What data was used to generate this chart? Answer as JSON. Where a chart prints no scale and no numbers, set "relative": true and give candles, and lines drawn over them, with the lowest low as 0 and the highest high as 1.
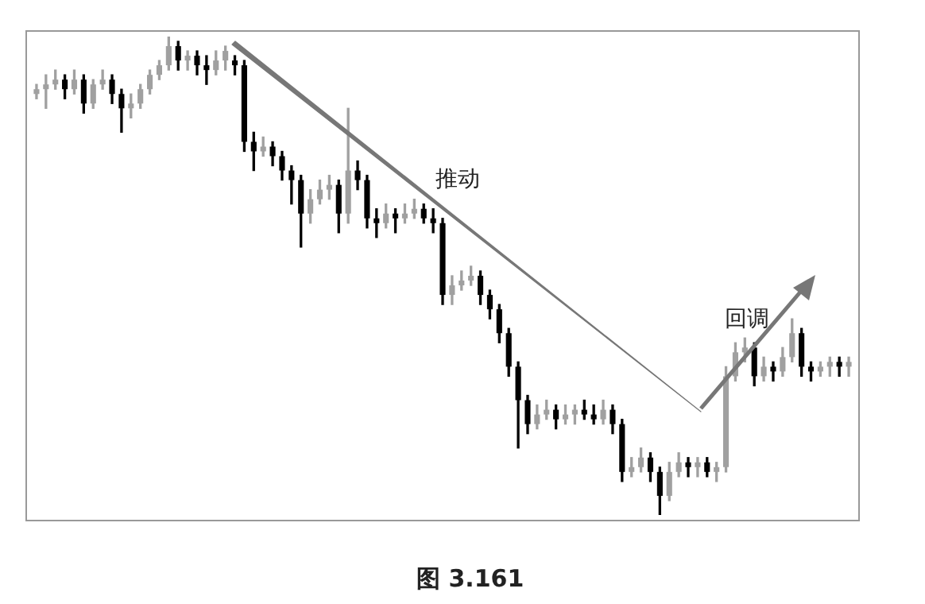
{
  "chart_data": {
    "type": "candlestick",
    "relative": true,
    "categories": [
      null,
      null,
      null,
      null,
      null,
      null,
      null,
      null,
      null,
      null,
      null,
      null,
      null,
      null,
      null,
      null,
      null,
      null,
      null,
      null,
      null,
      null,
      null,
      null,
      null,
      null,
      null,
      null,
      null,
      null,
      null,
      null,
      null,
      null,
      null,
      null,
      null,
      null,
      null,
      null,
      null,
      null,
      null,
      null,
      null,
      null,
      null,
      null,
      null,
      null,
      null,
      null,
      null,
      null,
      null,
      null,
      null,
      null,
      null,
      null,
      null,
      null,
      null,
      null,
      null,
      null,
      null,
      null,
      null,
      null,
      null,
      null,
      null,
      null,
      null,
      null,
      null,
      null,
      null,
      null,
      null,
      null,
      null,
      null,
      null,
      null,
      null
    ],
    "ohlc": [
      [
        0.88,
        0.9,
        0.87,
        0.89
      ],
      [
        0.89,
        0.92,
        0.85,
        0.9
      ],
      [
        0.9,
        0.93,
        0.89,
        0.91
      ],
      [
        0.91,
        0.92,
        0.87,
        0.89
      ],
      [
        0.89,
        0.93,
        0.88,
        0.91
      ],
      [
        0.91,
        0.92,
        0.84,
        0.86
      ],
      [
        0.86,
        0.91,
        0.85,
        0.9
      ],
      [
        0.9,
        0.93,
        0.89,
        0.91
      ],
      [
        0.91,
        0.92,
        0.86,
        0.88
      ],
      [
        0.88,
        0.89,
        0.8,
        0.85
      ],
      [
        0.85,
        0.88,
        0.83,
        0.86
      ],
      [
        0.86,
        0.9,
        0.85,
        0.89
      ],
      [
        0.89,
        0.93,
        0.88,
        0.92
      ],
      [
        0.92,
        0.95,
        0.91,
        0.94
      ],
      [
        0.94,
        1.0,
        0.93,
        0.98
      ],
      [
        0.98,
        0.99,
        0.93,
        0.95
      ],
      [
        0.95,
        0.97,
        0.93,
        0.96
      ],
      [
        0.96,
        0.97,
        0.92,
        0.94
      ],
      [
        0.94,
        0.96,
        0.9,
        0.93
      ],
      [
        0.93,
        0.97,
        0.92,
        0.95
      ],
      [
        0.95,
        0.98,
        0.93,
        0.97
      ],
      [
        0.95,
        0.96,
        0.92,
        0.94
      ],
      [
        0.94,
        0.95,
        0.76,
        0.78
      ],
      [
        0.78,
        0.8,
        0.72,
        0.76
      ],
      [
        0.76,
        0.79,
        0.75,
        0.77
      ],
      [
        0.77,
        0.78,
        0.73,
        0.75
      ],
      [
        0.75,
        0.76,
        0.7,
        0.72
      ],
      [
        0.72,
        0.73,
        0.65,
        0.7
      ],
      [
        0.7,
        0.71,
        0.56,
        0.63
      ],
      [
        0.63,
        0.68,
        0.61,
        0.66
      ],
      [
        0.66,
        0.7,
        0.65,
        0.68
      ],
      [
        0.68,
        0.71,
        0.66,
        0.69
      ],
      [
        0.69,
        0.7,
        0.59,
        0.63
      ],
      [
        0.63,
        0.85,
        0.61,
        0.72
      ],
      [
        0.72,
        0.74,
        0.68,
        0.7
      ],
      [
        0.7,
        0.71,
        0.6,
        0.62
      ],
      [
        0.62,
        0.64,
        0.58,
        0.61
      ],
      [
        0.61,
        0.65,
        0.6,
        0.63
      ],
      [
        0.63,
        0.64,
        0.59,
        0.62
      ],
      [
        0.62,
        0.65,
        0.61,
        0.63
      ],
      [
        0.63,
        0.66,
        0.62,
        0.64
      ],
      [
        0.64,
        0.65,
        0.61,
        0.62
      ],
      [
        0.62,
        0.64,
        0.59,
        0.61
      ],
      [
        0.61,
        0.62,
        0.44,
        0.46
      ],
      [
        0.46,
        0.5,
        0.44,
        0.48
      ],
      [
        0.48,
        0.51,
        0.47,
        0.49
      ],
      [
        0.49,
        0.52,
        0.48,
        0.5
      ],
      [
        0.5,
        0.51,
        0.44,
        0.46
      ],
      [
        0.46,
        0.47,
        0.41,
        0.43
      ],
      [
        0.43,
        0.44,
        0.36,
        0.38
      ],
      [
        0.38,
        0.39,
        0.29,
        0.31
      ],
      [
        0.31,
        0.32,
        0.14,
        0.24
      ],
      [
        0.24,
        0.25,
        0.17,
        0.19
      ],
      [
        0.19,
        0.23,
        0.18,
        0.21
      ],
      [
        0.21,
        0.24,
        0.2,
        0.22
      ],
      [
        0.22,
        0.23,
        0.18,
        0.2
      ],
      [
        0.2,
        0.23,
        0.19,
        0.21
      ],
      [
        0.21,
        0.23,
        0.19,
        0.22
      ],
      [
        0.22,
        0.24,
        0.2,
        0.21
      ],
      [
        0.21,
        0.23,
        0.19,
        0.2
      ],
      [
        0.2,
        0.24,
        0.19,
        0.22
      ],
      [
        0.22,
        0.23,
        0.17,
        0.19
      ],
      [
        0.19,
        0.2,
        0.07,
        0.09
      ],
      [
        0.09,
        0.12,
        0.08,
        0.1
      ],
      [
        0.1,
        0.14,
        0.09,
        0.12
      ],
      [
        0.12,
        0.13,
        0.07,
        0.09
      ],
      [
        0.09,
        0.1,
        0.0,
        0.04
      ],
      [
        0.04,
        0.11,
        0.03,
        0.09
      ],
      [
        0.09,
        0.13,
        0.08,
        0.11
      ],
      [
        0.11,
        0.12,
        0.08,
        0.1
      ],
      [
        0.1,
        0.12,
        0.08,
        0.11
      ],
      [
        0.11,
        0.12,
        0.08,
        0.09
      ],
      [
        0.09,
        0.11,
        0.07,
        0.1
      ],
      [
        0.1,
        0.31,
        0.09,
        0.29
      ],
      [
        0.29,
        0.36,
        0.28,
        0.34
      ],
      [
        0.34,
        0.37,
        0.32,
        0.35
      ],
      [
        0.35,
        0.36,
        0.27,
        0.29
      ],
      [
        0.29,
        0.33,
        0.28,
        0.31
      ],
      [
        0.31,
        0.32,
        0.28,
        0.3
      ],
      [
        0.3,
        0.35,
        0.29,
        0.33
      ],
      [
        0.33,
        0.41,
        0.32,
        0.38
      ],
      [
        0.38,
        0.39,
        0.29,
        0.31
      ],
      [
        0.31,
        0.32,
        0.28,
        0.3
      ],
      [
        0.3,
        0.32,
        0.29,
        0.31
      ],
      [
        0.31,
        0.33,
        0.29,
        0.32
      ],
      [
        0.32,
        0.33,
        0.29,
        0.31
      ],
      [
        0.31,
        0.33,
        0.29,
        0.32
      ]
    ],
    "colors": [
      "#a0a0a0",
      "#a0a0a0",
      "#a0a0a0",
      "#000000",
      "#a0a0a0",
      "#000000",
      "#a0a0a0",
      "#a0a0a0",
      "#000000",
      "#000000",
      "#a0a0a0",
      "#a0a0a0",
      "#a0a0a0",
      "#a0a0a0",
      "#a0a0a0",
      "#000000",
      "#a0a0a0",
      "#000000",
      "#000000",
      "#a0a0a0",
      "#a0a0a0",
      "#000000",
      "#000000",
      "#000000",
      "#a0a0a0",
      "#000000",
      "#000000",
      "#000000",
      "#000000",
      "#a0a0a0",
      "#a0a0a0",
      "#a0a0a0",
      "#000000",
      "#a0a0a0",
      "#000000",
      "#000000",
      "#000000",
      "#a0a0a0",
      "#000000",
      "#a0a0a0",
      "#a0a0a0",
      "#000000",
      "#000000",
      "#000000",
      "#a0a0a0",
      "#a0a0a0",
      "#a0a0a0",
      "#000000",
      "#000000",
      "#000000",
      "#000000",
      "#000000",
      "#000000",
      "#a0a0a0",
      "#a0a0a0",
      "#000000",
      "#a0a0a0",
      "#a0a0a0",
      "#000000",
      "#000000",
      "#a0a0a0",
      "#000000",
      "#000000",
      "#a0a0a0",
      "#a0a0a0",
      "#000000",
      "#000000",
      "#a0a0a0",
      "#a0a0a0",
      "#000000",
      "#a0a0a0",
      "#000000",
      "#a0a0a0",
      "#a0a0a0",
      "#a0a0a0",
      "#a0a0a0",
      "#000000",
      "#a0a0a0",
      "#000000",
      "#a0a0a0",
      "#a0a0a0",
      "#000000",
      "#000000",
      "#a0a0a0",
      "#a0a0a0",
      "#000000",
      "#a0a0a0"
    ],
    "annotations": [
      "推动",
      "回调",
      "图 3.161"
    ]
  }
}
